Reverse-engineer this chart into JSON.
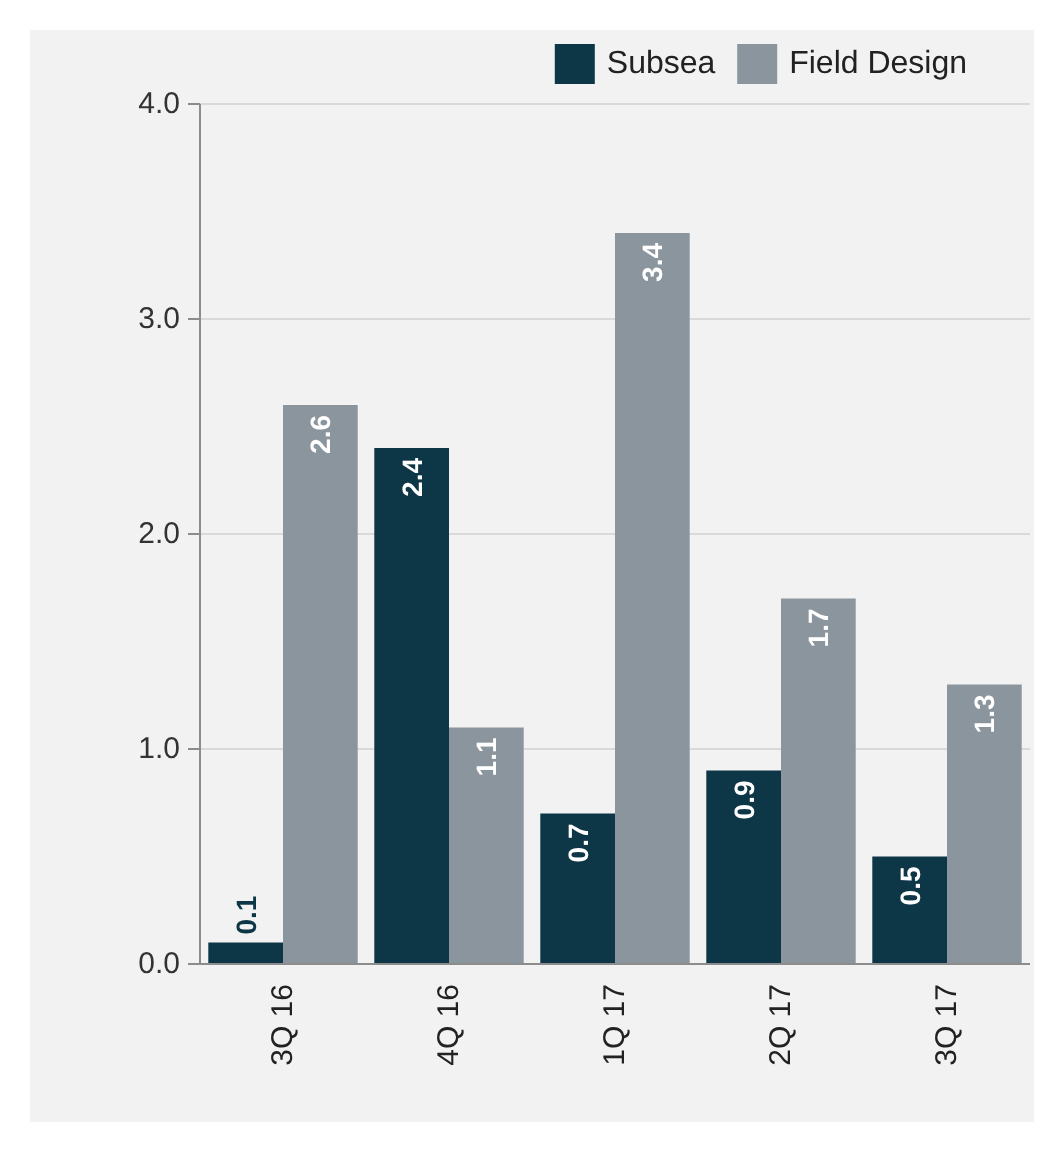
{
  "chart_data": {
    "type": "bar",
    "categories": [
      "3Q 16",
      "4Q 16",
      "1Q 17",
      "2Q 17",
      "3Q 17"
    ],
    "series": [
      {
        "name": "Subsea",
        "color": "#0d3646",
        "values": [
          0.1,
          2.4,
          0.7,
          0.9,
          0.5
        ]
      },
      {
        "name": "Field Design",
        "color": "#8a959e",
        "values": [
          2.6,
          1.1,
          3.4,
          1.7,
          1.3
        ]
      }
    ],
    "ylim": [
      0,
      4
    ],
    "yticks": [
      {
        "value": 0,
        "label": "0.0"
      },
      {
        "value": 1,
        "label": "1.0"
      },
      {
        "value": 2,
        "label": "2.0"
      },
      {
        "value": 3,
        "label": "3.0"
      },
      {
        "value": 4,
        "label": "4.0"
      }
    ],
    "grid": "y",
    "legend": "top right",
    "data_labels": true
  }
}
